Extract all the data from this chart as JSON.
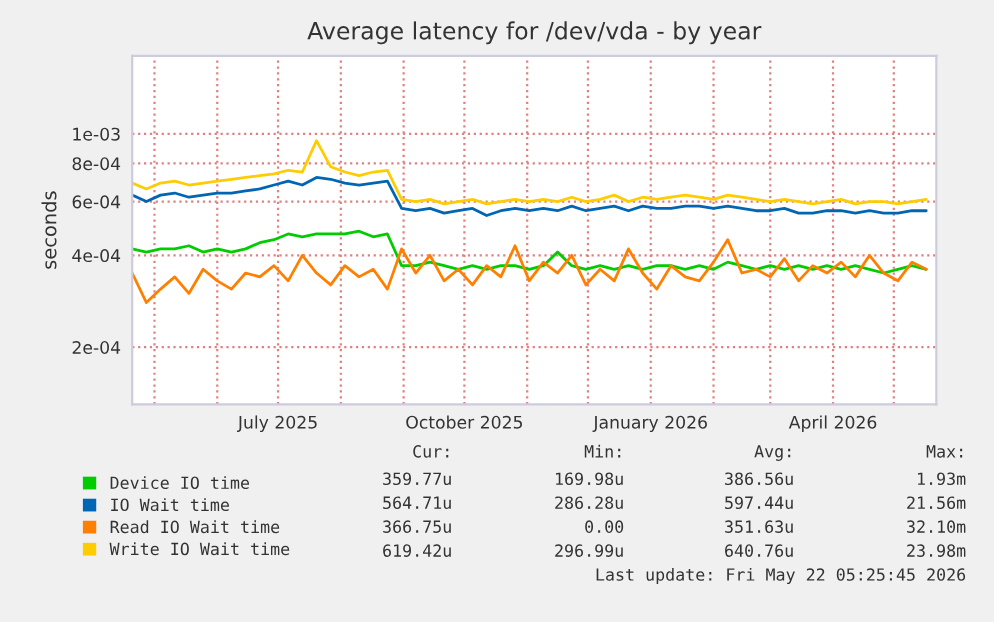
{
  "chart_data": {
    "type": "line",
    "title": "Average latency for /dev/vda - by year",
    "ylabel": "seconds",
    "x": [
      "2025-04-20",
      "2025-04-27",
      "2025-05-04",
      "2025-05-11",
      "2025-05-18",
      "2025-05-25",
      "2025-06-01",
      "2025-06-08",
      "2025-06-15",
      "2025-06-22",
      "2025-06-29",
      "2025-07-06",
      "2025-07-13",
      "2025-07-20",
      "2025-07-27",
      "2025-08-03",
      "2025-08-10",
      "2025-08-17",
      "2025-08-24",
      "2025-08-31",
      "2025-09-07",
      "2025-09-14",
      "2025-09-21",
      "2025-09-28",
      "2025-10-05",
      "2025-10-12",
      "2025-10-19",
      "2025-10-26",
      "2025-11-02",
      "2025-11-09",
      "2025-11-16",
      "2025-11-23",
      "2025-11-30",
      "2025-12-07",
      "2025-12-14",
      "2025-12-21",
      "2025-12-28",
      "2026-01-04",
      "2026-01-11",
      "2026-01-18",
      "2026-01-25",
      "2026-02-01",
      "2026-02-08",
      "2026-02-15",
      "2026-02-22",
      "2026-03-01",
      "2026-03-08",
      "2026-03-15",
      "2026-03-22",
      "2026-03-29",
      "2026-04-05",
      "2026-04-12",
      "2026-04-19",
      "2026-04-26",
      "2026-05-03",
      "2026-05-10",
      "2026-05-17"
    ],
    "series": [
      {
        "name": "Device IO time",
        "color": "#00cc00",
        "values": [
          0.00042,
          0.00041,
          0.00042,
          0.00042,
          0.00043,
          0.00041,
          0.00042,
          0.00041,
          0.00042,
          0.00044,
          0.00045,
          0.00047,
          0.00046,
          0.00047,
          0.00047,
          0.00047,
          0.00048,
          0.00046,
          0.00047,
          0.00037,
          0.00037,
          0.00038,
          0.00037,
          0.00036,
          0.00037,
          0.00036,
          0.00037,
          0.00037,
          0.00036,
          0.00037,
          0.00041,
          0.00037,
          0.00036,
          0.00037,
          0.00036,
          0.00037,
          0.00036,
          0.00037,
          0.00037,
          0.00036,
          0.00037,
          0.00036,
          0.00038,
          0.00037,
          0.00036,
          0.00037,
          0.00036,
          0.00037,
          0.00036,
          0.00037,
          0.00036,
          0.00037,
          0.00036,
          0.00035,
          0.00036,
          0.00037,
          0.00036
        ]
      },
      {
        "name": "IO Wait time",
        "color": "#0066b3",
        "values": [
          0.00063,
          0.0006,
          0.00063,
          0.00064,
          0.00062,
          0.00063,
          0.00064,
          0.00064,
          0.00065,
          0.00066,
          0.00068,
          0.0007,
          0.00068,
          0.00072,
          0.00071,
          0.00069,
          0.00068,
          0.00069,
          0.0007,
          0.00057,
          0.00056,
          0.00057,
          0.00055,
          0.00056,
          0.00057,
          0.00054,
          0.00056,
          0.00057,
          0.00056,
          0.00057,
          0.00056,
          0.00058,
          0.00056,
          0.00057,
          0.00058,
          0.00056,
          0.00058,
          0.00057,
          0.00057,
          0.00058,
          0.00058,
          0.00057,
          0.00058,
          0.00057,
          0.00056,
          0.00056,
          0.00057,
          0.00055,
          0.00055,
          0.00056,
          0.00056,
          0.00055,
          0.00056,
          0.00055,
          0.00055,
          0.00056,
          0.00056
        ]
      },
      {
        "name": "Read IO Wait time",
        "color": "#ff8000",
        "values": [
          0.00035,
          0.00028,
          0.00031,
          0.00034,
          0.0003,
          0.00036,
          0.00033,
          0.00031,
          0.00035,
          0.00034,
          0.00037,
          0.00033,
          0.0004,
          0.00035,
          0.00032,
          0.00037,
          0.00034,
          0.00036,
          0.00031,
          0.00042,
          0.00035,
          0.0004,
          0.00033,
          0.00036,
          0.00032,
          0.00037,
          0.00034,
          0.00043,
          0.00033,
          0.00038,
          0.00035,
          0.0004,
          0.00032,
          0.00036,
          0.00033,
          0.00042,
          0.00035,
          0.00031,
          0.00037,
          0.00034,
          0.00033,
          0.00038,
          0.00045,
          0.00035,
          0.00036,
          0.00034,
          0.00039,
          0.00033,
          0.00037,
          0.00035,
          0.00038,
          0.00034,
          0.0004,
          0.00035,
          0.00033,
          0.00038,
          0.00036
        ]
      },
      {
        "name": "Write IO Wait time",
        "color": "#ffcc00",
        "values": [
          0.00069,
          0.00066,
          0.00069,
          0.0007,
          0.00068,
          0.00069,
          0.0007,
          0.00071,
          0.00072,
          0.00073,
          0.00074,
          0.00076,
          0.00075,
          0.00095,
          0.00078,
          0.00075,
          0.00073,
          0.00075,
          0.00076,
          0.00061,
          0.0006,
          0.00061,
          0.00059,
          0.0006,
          0.00061,
          0.00059,
          0.0006,
          0.00061,
          0.0006,
          0.00061,
          0.0006,
          0.00062,
          0.0006,
          0.00061,
          0.00063,
          0.0006,
          0.00062,
          0.00061,
          0.00062,
          0.00063,
          0.00062,
          0.00061,
          0.00063,
          0.00062,
          0.00061,
          0.0006,
          0.00061,
          0.0006,
          0.00059,
          0.0006,
          0.00061,
          0.00059,
          0.0006,
          0.0006,
          0.00059,
          0.0006,
          0.00061
        ]
      }
    ],
    "log": "y",
    "ylim": [
      0.00013,
      0.0018
    ],
    "yticks": [
      {
        "value": 0.0002,
        "label": "2e-04"
      },
      {
        "value": 0.0004,
        "label": "4e-04"
      },
      {
        "value": 0.0006,
        "label": "6e-04"
      },
      {
        "value": 0.0008,
        "label": "8e-04"
      },
      {
        "value": 0.001,
        "label": "1e-03"
      }
    ],
    "xlim": [
      "2025-04-20",
      "2026-05-22"
    ],
    "xticks": [
      {
        "value": "2025-05-01",
        "label": null
      },
      {
        "value": "2025-06-01",
        "label": null
      },
      {
        "value": "2025-07-01",
        "label": "July 2025"
      },
      {
        "value": "2025-08-01",
        "label": null
      },
      {
        "value": "2025-09-01",
        "label": null
      },
      {
        "value": "2025-10-01",
        "label": "October 2025"
      },
      {
        "value": "2025-11-01",
        "label": null
      },
      {
        "value": "2025-12-01",
        "label": null
      },
      {
        "value": "2026-01-01",
        "label": "January 2026"
      },
      {
        "value": "2026-02-01",
        "label": null
      },
      {
        "value": "2026-03-01",
        "label": null
      },
      {
        "value": "2026-04-01",
        "label": "April 2026"
      },
      {
        "value": "2026-05-01",
        "label": null
      }
    ],
    "grid": true,
    "legend": "bottom",
    "marker": "none",
    "line_style": "solid",
    "annotations": [
      "Cur:",
      "Min:",
      "Avg:",
      "Max:",
      "359.77u",
      "169.98u",
      "386.56u",
      "1.93m",
      "564.71u",
      "286.28u",
      "597.44u",
      "21.56m",
      "366.75u",
      "0.00",
      "351.63u",
      "32.10m",
      "619.42u",
      "296.99u",
      "640.76u",
      "23.98m",
      "Last update: Fri May 22 05:25:45 2026"
    ]
  }
}
